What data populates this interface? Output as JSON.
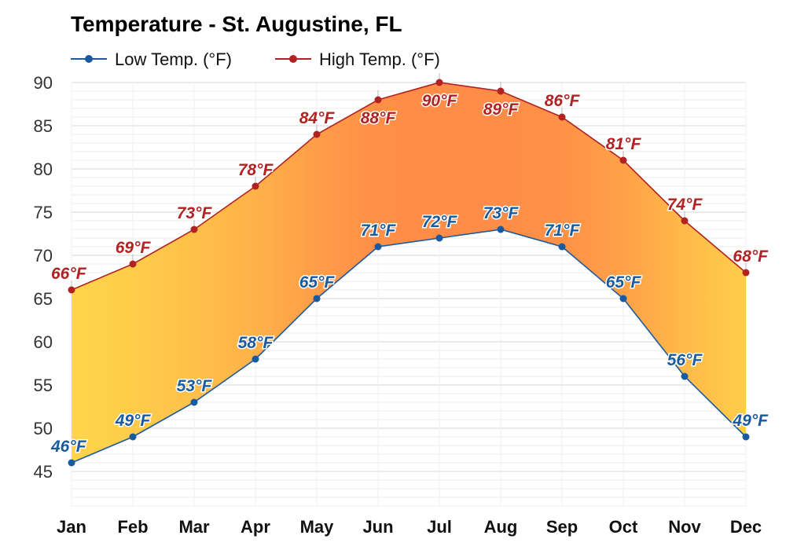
{
  "chart_data": {
    "type": "area",
    "title": "Temperature - St. Augustine, FL",
    "xlabel": "",
    "ylabel": "",
    "categories": [
      "Jan",
      "Feb",
      "Mar",
      "Apr",
      "May",
      "Jun",
      "Jul",
      "Aug",
      "Sep",
      "Oct",
      "Nov",
      "Dec"
    ],
    "series": [
      {
        "name": "Low Temp. (°F)",
        "color": "#1a5a9e",
        "values": [
          46,
          49,
          53,
          58,
          65,
          71,
          72,
          73,
          71,
          65,
          56,
          49
        ],
        "labels": [
          "46°F",
          "49°F",
          "53°F",
          "58°F",
          "65°F",
          "71°F",
          "72°F",
          "73°F",
          "71°F",
          "65°F",
          "56°F",
          "49°F"
        ]
      },
      {
        "name": "High Temp. (°F)",
        "color": "#b22222",
        "values": [
          66,
          69,
          73,
          78,
          84,
          88,
          90,
          89,
          86,
          81,
          74,
          68
        ],
        "labels": [
          "66°F",
          "69°F",
          "73°F",
          "78°F",
          "84°F",
          "88°F",
          "90°F",
          "89°F",
          "86°F",
          "81°F",
          "74°F",
          "68°F"
        ]
      }
    ],
    "yticks": [
      45,
      50,
      55,
      60,
      65,
      70,
      75,
      80,
      85,
      90
    ],
    "ylim": [
      41,
      90
    ],
    "grid": true,
    "legend": "top-left",
    "fill_colors": {
      "cool": "#ffd54a",
      "mid": "#ffa94a",
      "warm": "#ff8c47"
    }
  }
}
